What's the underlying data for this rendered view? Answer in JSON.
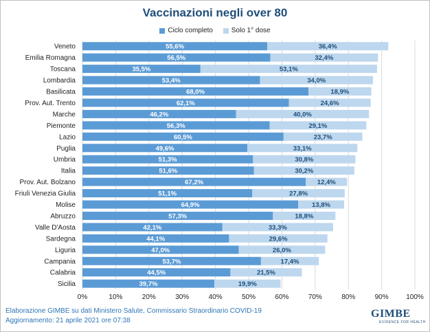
{
  "title": "Vaccinazioni negli over 80",
  "footer": {
    "line1": "Elaborazione GIMBE su dati Ministero Salute, Commissario Straordinario COVID-19",
    "line2": "Aggiornamento: 21 aprile 2021 ore 07:38"
  },
  "logo": {
    "main": "GIMBE",
    "sub": "EVIDENCE FOR HEALTH"
  },
  "colors": {
    "primary": "#5b9bd5",
    "secondary": "#bdd7ee",
    "title": "#1f4e79",
    "footer": "#2e75b6"
  },
  "chart_data": {
    "type": "bar",
    "orientation": "horizontal",
    "stacked": true,
    "categories": [
      "Veneto",
      "Emilia Romagna",
      "Toscana",
      "Lombardia",
      "Basilicata",
      "Prov. Aut. Trento",
      "Marche",
      "Piemonte",
      "Lazio",
      "Puglia",
      "Umbria",
      "Italia",
      "Prov. Aut. Bolzano",
      "Friuli Venezia Giulia",
      "Molise",
      "Abruzzo",
      "Valle D'Aosta",
      "Sardegna",
      "Liguria",
      "Campania",
      "Calabria",
      "Sicilia"
    ],
    "series": [
      {
        "name": "Ciclo completo",
        "color": "#5b9bd5",
        "values": [
          55.6,
          56.5,
          35.5,
          53.4,
          68.0,
          62.1,
          46.2,
          56.3,
          60.5,
          49.6,
          51.3,
          51.6,
          67.2,
          51.1,
          64.9,
          57.3,
          42.1,
          44.1,
          47.0,
          53.7,
          44.5,
          39.7
        ],
        "labels": [
          "55,6%",
          "56,5%",
          "35,5%",
          "53,4%",
          "68,0%",
          "62,1%",
          "46,2%",
          "56,3%",
          "60,5%",
          "49,6%",
          "51,3%",
          "51,6%",
          "67,2%",
          "51,1%",
          "64,9%",
          "57,3%",
          "42,1%",
          "44,1%",
          "47,0%",
          "53,7%",
          "44,5%",
          "39,7%"
        ]
      },
      {
        "name": "Solo 1° dose",
        "color": "#bdd7ee",
        "values": [
          36.4,
          32.4,
          53.1,
          34.0,
          18.9,
          24.6,
          40.0,
          29.1,
          23.7,
          33.1,
          30.8,
          30.2,
          12.4,
          27.8,
          13.8,
          18.8,
          33.3,
          29.6,
          26.0,
          17.4,
          21.5,
          19.9
        ],
        "labels": [
          "36,4%",
          "32,4%",
          "53,1%",
          "34,0%",
          "18,9%",
          "24,6%",
          "40,0%",
          "29,1%",
          "23,7%",
          "33,1%",
          "30,8%",
          "30,2%",
          "12,4%",
          "27,8%",
          "13,8%",
          "18,8%",
          "33,3%",
          "29,6%",
          "26,0%",
          "17,4%",
          "21,5%",
          "19,9%"
        ]
      }
    ],
    "xlim": [
      0,
      100
    ],
    "xticks": [
      "0%",
      "10%",
      "20%",
      "30%",
      "40%",
      "50%",
      "60%",
      "70%",
      "80%",
      "90%",
      "100%"
    ],
    "grid": true,
    "legend_position": "top"
  }
}
